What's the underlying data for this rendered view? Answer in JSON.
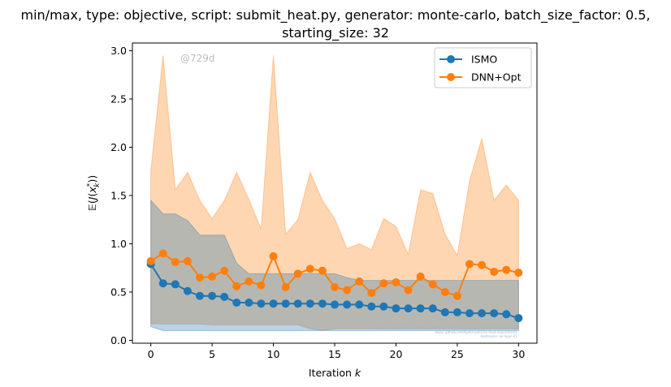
{
  "chart_data": {
    "type": "line",
    "title_line1": "min/max, type: objective, script: submit_heat.py, generator: monte-carlo, batch_size_factor: 0.5,",
    "title_line2": "starting_size: 32",
    "xlabel": "Iteration",
    "xlabel_var": "k",
    "ylabel": "E(J(x_k^*))",
    "xlim": [
      -1.5,
      31.5
    ],
    "ylim": [
      -0.03,
      3.08
    ],
    "xticks": [
      0,
      5,
      10,
      15,
      20,
      25,
      30
    ],
    "xtick_labels": [
      "0",
      "5",
      "10",
      "15",
      "20",
      "25",
      "30"
    ],
    "yticks": [
      0.0,
      0.5,
      1.0,
      1.5,
      2.0,
      2.5,
      3.0
    ],
    "ytick_labels": [
      "0.0",
      "0.5",
      "1.0",
      "1.5",
      "2.0",
      "2.5",
      "3.0"
    ],
    "grid": false,
    "legend_position": "top-right",
    "watermark": "@729d",
    "footnote_lines": [
      "No Bayesian Optimization (trained NN) submit_heat.py, bayes_opt off, ISMO DNN+Opt",
      "Repo: github.com/kjetil-lye/ismo-heat-experiments",
      "Hostname: ex-login-01"
    ],
    "x": [
      0,
      1,
      2,
      3,
      4,
      5,
      6,
      7,
      8,
      9,
      10,
      11,
      12,
      13,
      14,
      15,
      16,
      17,
      18,
      19,
      20,
      21,
      22,
      23,
      24,
      25,
      26,
      27,
      28,
      29,
      30
    ],
    "series": [
      {
        "name": "ISMO",
        "color": "#1f77b4",
        "values": [
          0.79,
          0.59,
          0.58,
          0.51,
          0.46,
          0.46,
          0.45,
          0.39,
          0.39,
          0.38,
          0.38,
          0.38,
          0.38,
          0.38,
          0.38,
          0.37,
          0.37,
          0.37,
          0.35,
          0.35,
          0.33,
          0.33,
          0.33,
          0.33,
          0.29,
          0.29,
          0.28,
          0.28,
          0.28,
          0.27,
          0.23
        ],
        "min": [
          0.14,
          0.1,
          0.1,
          0.1,
          0.1,
          0.1,
          0.1,
          0.1,
          0.1,
          0.1,
          0.1,
          0.1,
          0.1,
          0.1,
          0.1,
          0.1,
          0.1,
          0.1,
          0.1,
          0.1,
          0.1,
          0.1,
          0.1,
          0.1,
          0.1,
          0.1,
          0.1,
          0.1,
          0.1,
          0.1,
          0.1
        ],
        "max": [
          1.45,
          1.31,
          1.31,
          1.24,
          1.09,
          1.09,
          1.09,
          0.8,
          0.69,
          0.69,
          0.69,
          0.69,
          0.69,
          0.69,
          0.69,
          0.69,
          0.65,
          0.62,
          0.62,
          0.62,
          0.62,
          0.62,
          0.62,
          0.62,
          0.62,
          0.62,
          0.62,
          0.62,
          0.62,
          0.62,
          0.62
        ]
      },
      {
        "name": "DNN+Opt",
        "color": "#ff7f0e",
        "values": [
          0.82,
          0.9,
          0.81,
          0.82,
          0.65,
          0.66,
          0.72,
          0.56,
          0.61,
          0.57,
          0.87,
          0.55,
          0.69,
          0.74,
          0.72,
          0.55,
          0.52,
          0.61,
          0.49,
          0.59,
          0.6,
          0.52,
          0.66,
          0.58,
          0.5,
          0.46,
          0.79,
          0.78,
          0.71,
          0.73,
          0.7
        ],
        "min": [
          0.17,
          0.17,
          0.17,
          0.17,
          0.17,
          0.16,
          0.16,
          0.16,
          0.16,
          0.16,
          0.16,
          0.16,
          0.16,
          0.12,
          0.1,
          0.12,
          0.12,
          0.12,
          0.12,
          0.12,
          0.12,
          0.12,
          0.12,
          0.12,
          0.12,
          0.12,
          0.12,
          0.12,
          0.12,
          0.12,
          0.12
        ],
        "max": [
          1.75,
          2.95,
          1.56,
          1.74,
          1.45,
          1.26,
          1.45,
          1.74,
          1.46,
          1.15,
          2.95,
          1.1,
          1.25,
          1.74,
          1.45,
          1.26,
          0.95,
          1.0,
          0.94,
          1.26,
          1.18,
          0.89,
          1.56,
          1.52,
          1.1,
          0.88,
          1.65,
          2.09,
          1.45,
          1.61,
          1.45
        ]
      }
    ]
  }
}
